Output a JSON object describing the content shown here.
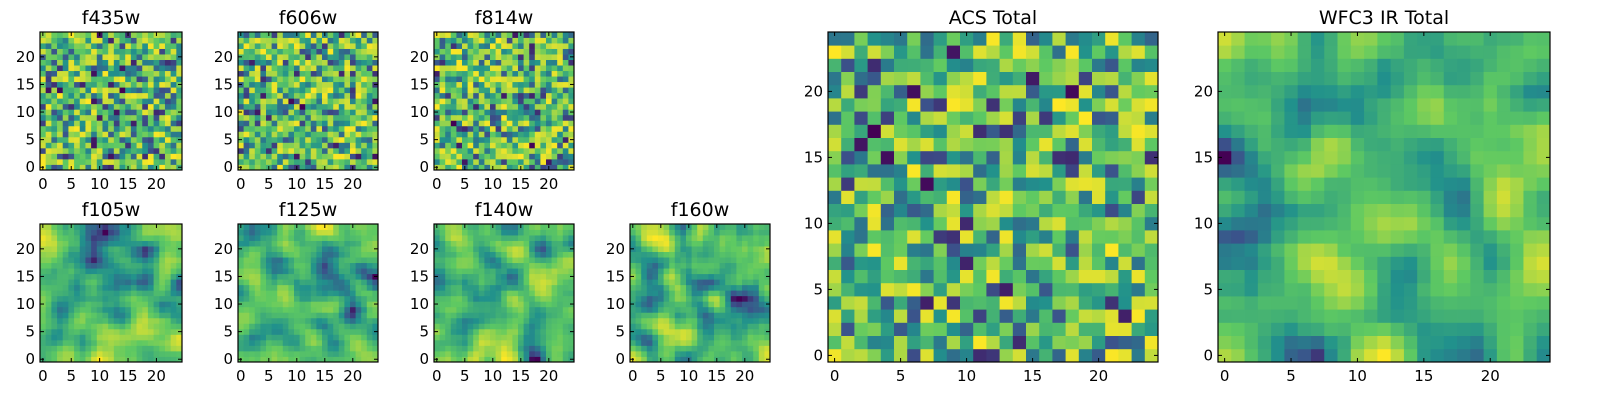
{
  "figure": {
    "colormap": "viridis",
    "colormap_stops": [
      "#440154",
      "#3b528b",
      "#21918c",
      "#5ec962",
      "#fde725"
    ],
    "background": "#ffffff"
  },
  "chart_data": [
    {
      "type": "heatmap",
      "title": "f435w",
      "grid_size": 25,
      "x_ticks": [
        "0",
        "5",
        "10",
        "15",
        "20"
      ],
      "y_ticks": [
        "0",
        "5",
        "10",
        "15",
        "20"
      ],
      "texture": "fine-noise",
      "seed": 11
    },
    {
      "type": "heatmap",
      "title": "f606w",
      "grid_size": 25,
      "x_ticks": [
        "0",
        "5",
        "10",
        "15",
        "20"
      ],
      "y_ticks": [
        "0",
        "5",
        "10",
        "15",
        "20"
      ],
      "texture": "fine-noise",
      "seed": 23
    },
    {
      "type": "heatmap",
      "title": "f814w",
      "grid_size": 25,
      "x_ticks": [
        "0",
        "5",
        "10",
        "15",
        "20"
      ],
      "y_ticks": [
        "0",
        "5",
        "10",
        "15",
        "20"
      ],
      "texture": "fine-noise",
      "seed": 37
    },
    {
      "type": "heatmap",
      "title": "f105w",
      "grid_size": 25,
      "x_ticks": [
        "0",
        "5",
        "10",
        "15",
        "20"
      ],
      "y_ticks": [
        "0",
        "5",
        "10",
        "15",
        "20"
      ],
      "texture": "smooth",
      "seed": 41
    },
    {
      "type": "heatmap",
      "title": "f125w",
      "grid_size": 25,
      "x_ticks": [
        "0",
        "5",
        "10",
        "15",
        "20"
      ],
      "y_ticks": [
        "0",
        "5",
        "10",
        "15",
        "20"
      ],
      "texture": "smooth",
      "seed": 53
    },
    {
      "type": "heatmap",
      "title": "f140w",
      "grid_size": 25,
      "x_ticks": [
        "0",
        "5",
        "10",
        "15",
        "20"
      ],
      "y_ticks": [
        "0",
        "5",
        "10",
        "15",
        "20"
      ],
      "texture": "smooth",
      "seed": 67
    },
    {
      "type": "heatmap",
      "title": "f160w",
      "grid_size": 25,
      "x_ticks": [
        "0",
        "5",
        "10",
        "15",
        "20"
      ],
      "y_ticks": [
        "0",
        "5",
        "10",
        "15",
        "20"
      ],
      "texture": "smooth",
      "seed": 79
    },
    {
      "type": "heatmap",
      "title": "ACS Total",
      "grid_size": 25,
      "x_ticks": [
        "0",
        "5",
        "10",
        "15",
        "20"
      ],
      "y_ticks": [
        "0",
        "5",
        "10",
        "15",
        "20"
      ],
      "texture": "coarse-noise",
      "seed": 83
    },
    {
      "type": "heatmap",
      "title": "WFC3 IR Total",
      "grid_size": 25,
      "x_ticks": [
        "0",
        "5",
        "10",
        "15",
        "20"
      ],
      "y_ticks": [
        "0",
        "5",
        "10",
        "15",
        "20"
      ],
      "texture": "smooth",
      "seed": 97
    }
  ]
}
